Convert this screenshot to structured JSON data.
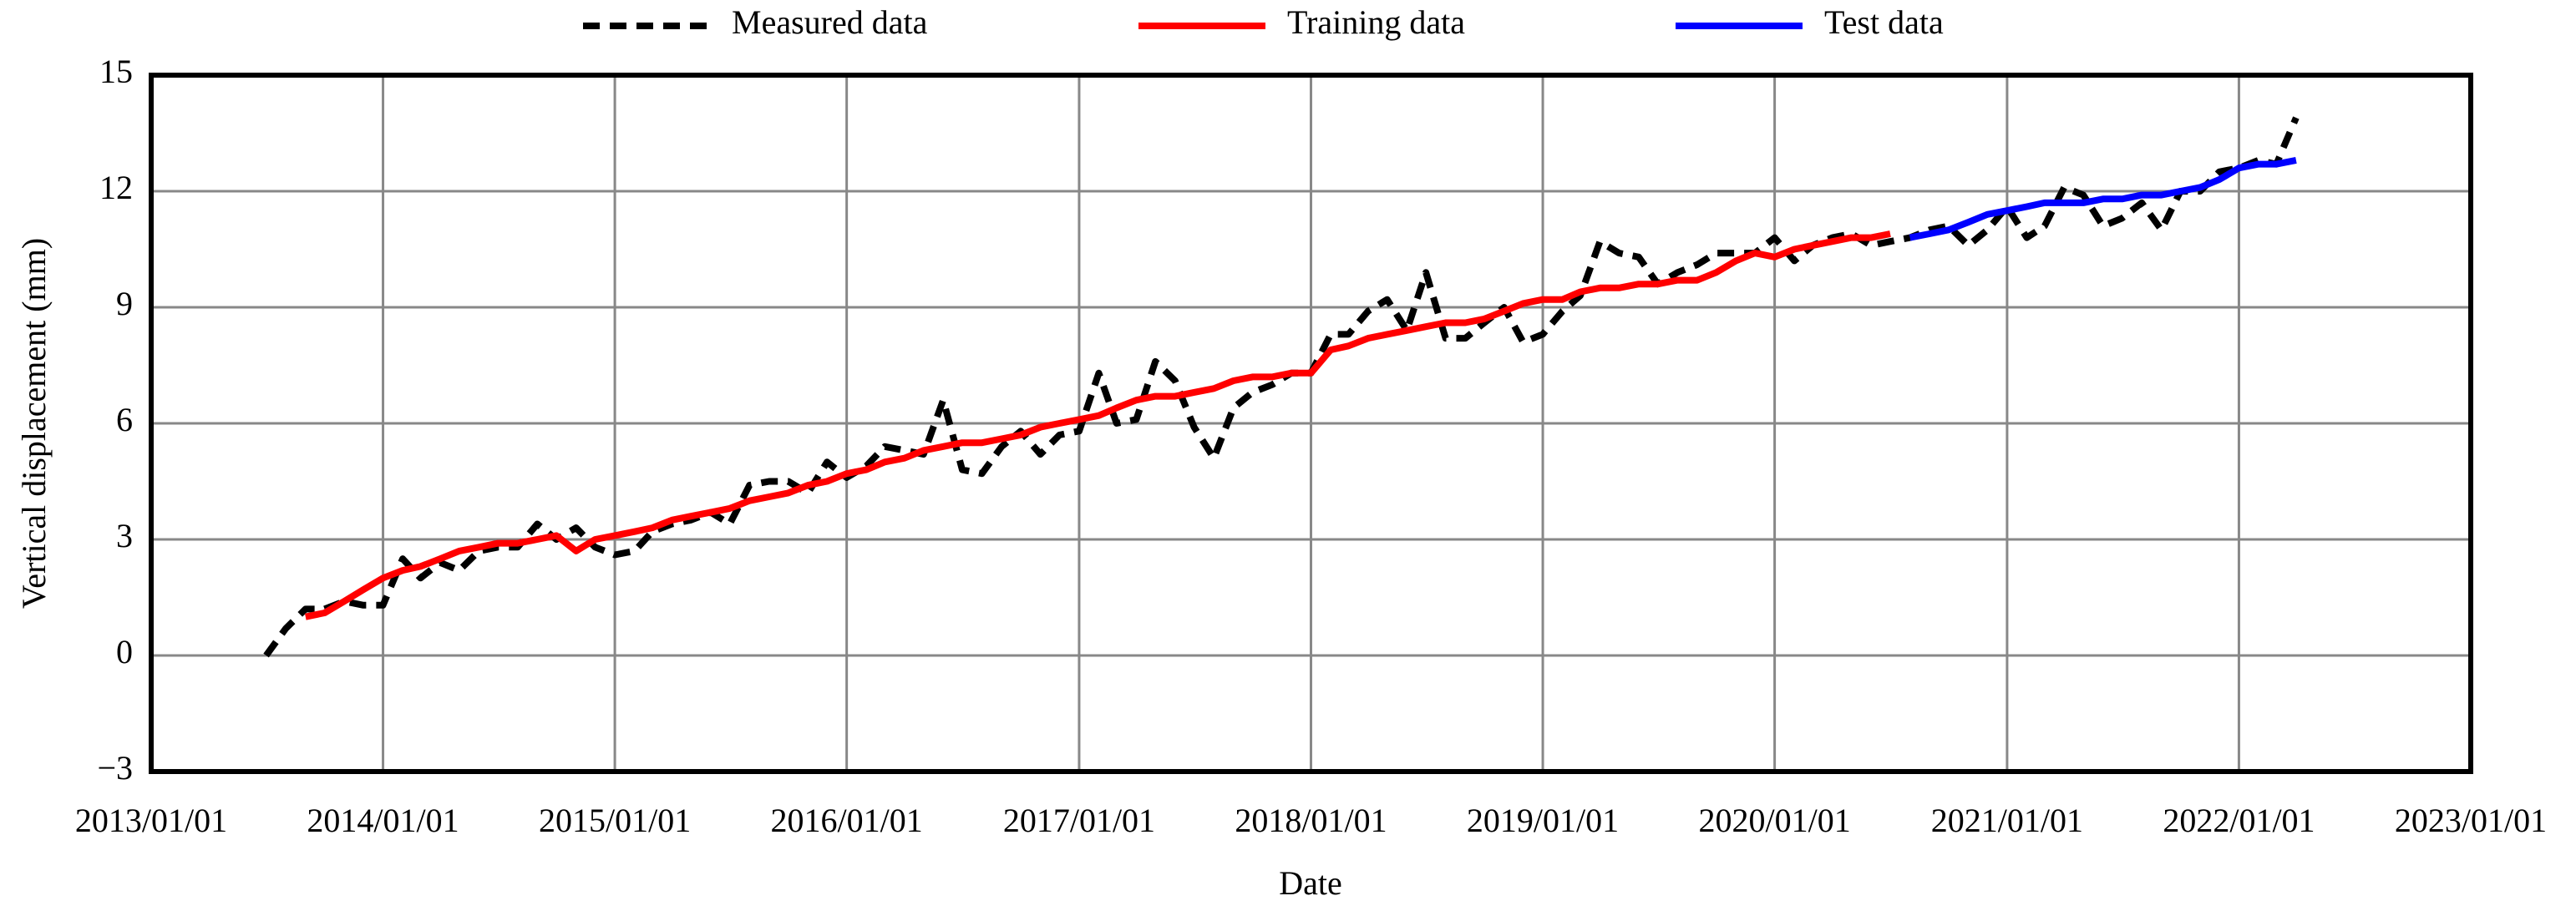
{
  "chart_data": {
    "type": "line",
    "x_label": "Date",
    "y_label": "Vertical displacement (mm)",
    "x": [
      "2013/07/01",
      "2013/08/01",
      "2013/09/01",
      "2013/10/01",
      "2013/11/01",
      "2013/12/01",
      "2014/01/01",
      "2014/02/01",
      "2014/03/01",
      "2014/04/01",
      "2014/05/01",
      "2014/06/01",
      "2014/07/01",
      "2014/08/01",
      "2014/09/01",
      "2014/10/01",
      "2014/11/01",
      "2014/12/01",
      "2015/01/01",
      "2015/02/01",
      "2015/03/01",
      "2015/04/01",
      "2015/05/01",
      "2015/06/01",
      "2015/07/01",
      "2015/08/01",
      "2015/09/01",
      "2015/10/01",
      "2015/11/01",
      "2015/12/01",
      "2016/01/01",
      "2016/02/01",
      "2016/03/01",
      "2016/04/01",
      "2016/05/01",
      "2016/06/01",
      "2016/07/01",
      "2016/08/01",
      "2016/09/01",
      "2016/10/01",
      "2016/11/01",
      "2016/12/01",
      "2017/01/01",
      "2017/02/01",
      "2017/03/01",
      "2017/04/01",
      "2017/05/01",
      "2017/06/01",
      "2017/07/01",
      "2017/08/01",
      "2017/09/01",
      "2017/10/01",
      "2017/11/01",
      "2017/12/01",
      "2018/01/01",
      "2018/02/01",
      "2018/03/01",
      "2018/04/01",
      "2018/05/01",
      "2018/06/01",
      "2018/07/01",
      "2018/08/01",
      "2018/09/01",
      "2018/10/01",
      "2018/11/01",
      "2018/12/01",
      "2019/01/01",
      "2019/02/01",
      "2019/03/01",
      "2019/04/01",
      "2019/05/01",
      "2019/06/01",
      "2019/07/01",
      "2019/08/01",
      "2019/09/01",
      "2019/10/01",
      "2019/11/01",
      "2019/12/01",
      "2020/01/01",
      "2020/02/01",
      "2020/03/01",
      "2020/04/01",
      "2020/05/01",
      "2020/06/01",
      "2020/07/01",
      "2020/08/01",
      "2020/09/01",
      "2020/10/01",
      "2020/11/01",
      "2020/12/01",
      "2021/01/01",
      "2021/02/01",
      "2021/03/01",
      "2021/04/01",
      "2021/05/01",
      "2021/06/01",
      "2021/07/01",
      "2021/08/01",
      "2021/09/01",
      "2021/10/01",
      "2021/11/01",
      "2021/12/01",
      "2022/01/01",
      "2022/02/01",
      "2022/03/01",
      "2022/04/01"
    ],
    "series": [
      {
        "name": "Measured data",
        "color": "#000000",
        "dashed": true,
        "values": [
          0,
          0.7,
          1.2,
          1.2,
          1.4,
          1.3,
          1.3,
          2.5,
          2.0,
          2.4,
          2.2,
          2.7,
          2.8,
          2.8,
          3.4,
          3.0,
          3.3,
          2.8,
          2.6,
          2.7,
          3.2,
          3.4,
          3.5,
          3.7,
          3.4,
          4.4,
          4.5,
          4.5,
          4.2,
          5.0,
          4.6,
          4.9,
          5.4,
          5.3,
          5.2,
          6.6,
          4.8,
          4.7,
          5.4,
          5.8,
          5.2,
          5.7,
          5.8,
          7.3,
          6.0,
          6.1,
          7.6,
          7.1,
          5.9,
          5.1,
          6.4,
          6.8,
          7.0,
          7.3,
          7.3,
          8.3,
          8.3,
          8.9,
          9.2,
          8.4,
          9.9,
          8.2,
          8.2,
          8.6,
          9.0,
          8.1,
          8.3,
          8.9,
          9.3,
          10.7,
          10.4,
          10.3,
          9.6,
          9.9,
          10.1,
          10.4,
          10.4,
          10.4,
          10.8,
          10.2,
          10.6,
          10.8,
          10.9,
          10.6,
          10.7,
          10.8,
          11.0,
          11.1,
          10.6,
          11.0,
          11.6,
          10.8,
          11.1,
          12.1,
          11.9,
          11.1,
          11.3,
          11.7,
          11.0,
          12.0,
          12.0,
          12.5,
          12.6,
          12.8,
          12.7,
          13.9
        ]
      },
      {
        "name": "Training data",
        "color": "#ff0000",
        "dashed": false,
        "values": [
          null,
          null,
          1.0,
          1.1,
          1.4,
          1.7,
          2.0,
          2.2,
          2.3,
          2.5,
          2.7,
          2.8,
          2.9,
          2.9,
          3.0,
          3.1,
          2.7,
          3.0,
          3.1,
          3.2,
          3.3,
          3.5,
          3.6,
          3.7,
          3.8,
          4.0,
          4.1,
          4.2,
          4.4,
          4.5,
          4.7,
          4.8,
          5.0,
          5.1,
          5.3,
          5.4,
          5.5,
          5.5,
          5.6,
          5.7,
          5.9,
          6.0,
          6.1,
          6.2,
          6.4,
          6.6,
          6.7,
          6.7,
          6.8,
          6.9,
          7.1,
          7.2,
          7.2,
          7.3,
          7.3,
          7.9,
          8.0,
          8.2,
          8.3,
          8.4,
          8.5,
          8.6,
          8.6,
          8.7,
          8.9,
          9.1,
          9.2,
          9.2,
          9.4,
          9.5,
          9.5,
          9.6,
          9.6,
          9.7,
          9.7,
          9.9,
          10.2,
          10.4,
          10.3,
          10.5,
          10.6,
          10.7,
          10.8,
          10.8,
          10.9,
          null,
          null,
          null,
          null,
          null,
          null,
          null,
          null,
          null,
          null,
          null,
          null,
          null,
          null,
          null,
          null,
          null,
          null,
          null,
          null,
          null
        ]
      },
      {
        "name": "Test data",
        "color": "#0000ff",
        "dashed": false,
        "values": [
          null,
          null,
          null,
          null,
          null,
          null,
          null,
          null,
          null,
          null,
          null,
          null,
          null,
          null,
          null,
          null,
          null,
          null,
          null,
          null,
          null,
          null,
          null,
          null,
          null,
          null,
          null,
          null,
          null,
          null,
          null,
          null,
          null,
          null,
          null,
          null,
          null,
          null,
          null,
          null,
          null,
          null,
          null,
          null,
          null,
          null,
          null,
          null,
          null,
          null,
          null,
          null,
          null,
          null,
          null,
          null,
          null,
          null,
          null,
          null,
          null,
          null,
          null,
          null,
          null,
          null,
          null,
          null,
          null,
          null,
          null,
          null,
          null,
          null,
          null,
          null,
          null,
          null,
          null,
          null,
          null,
          null,
          null,
          null,
          null,
          10.8,
          10.9,
          11.0,
          11.2,
          11.4,
          11.5,
          11.6,
          11.7,
          11.7,
          11.7,
          11.8,
          11.8,
          11.9,
          11.9,
          12.0,
          12.1,
          12.3,
          12.6,
          12.7,
          12.7,
          12.8
        ]
      }
    ],
    "xlim": [
      "2013/01/01",
      "2023/01/01"
    ],
    "xticks": [
      "2013/01/01",
      "2014/01/01",
      "2015/01/01",
      "2016/01/01",
      "2017/01/01",
      "2018/01/01",
      "2019/01/01",
      "2020/01/01",
      "2021/01/01",
      "2022/01/01",
      "2023/01/01"
    ],
    "ylim": [
      -3,
      15
    ],
    "yticks": [
      {
        "value": -3,
        "label": "−3"
      },
      0,
      3,
      6,
      9,
      12,
      15
    ],
    "grid": true,
    "legend": "top"
  }
}
